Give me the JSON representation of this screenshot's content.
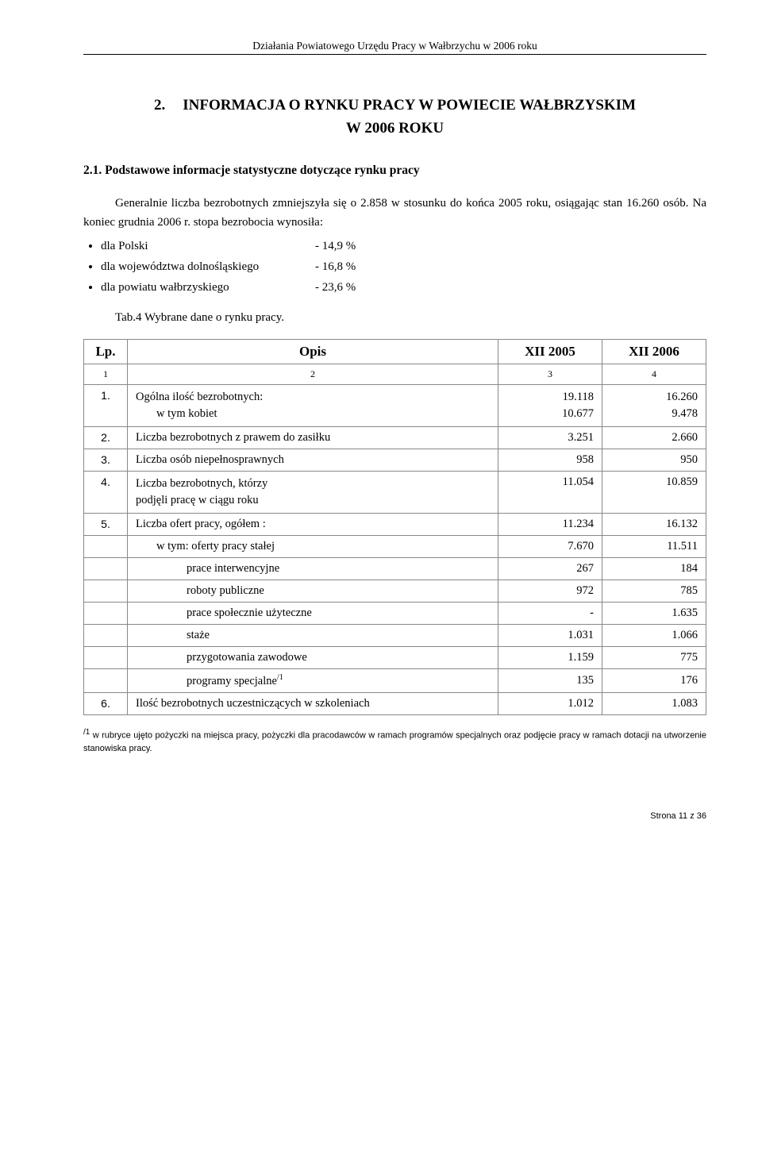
{
  "header": "Działania Powiatowego Urzędu Pracy w Wałbrzychu w 2006 roku",
  "title_num": "2.",
  "title_text_l1": "INFORMACJA  O  RYNKU PRACY W  POWIECIE WAŁBRZYSKIM",
  "title_text_l2": "W  2006  ROKU",
  "subsection": "2.1.  Podstawowe informacje statystyczne dotyczące rynku pracy",
  "para": "Generalnie liczba bezrobotnych zmniejszyła   się o  2.858 w stosunku do końca 2005 roku, osiągając stan 16.260 osób. Na koniec grudnia 2006 r. stopa bezrobocia wynosiła:",
  "stats": {
    "pl_label": "dla Polski",
    "pl_val": "- 14,9 %",
    "ds_label": "dla województwa dolnośląskiego",
    "ds_val": "- 16,8 %",
    "pw_label": "dla powiatu wałbrzyskiego",
    "pw_val": "- 23,6 %"
  },
  "tab_caption": "Tab.4 Wybrane dane o rynku pracy.",
  "table": {
    "h_lp": "Lp.",
    "h_opis": "Opis",
    "h_c1": "XII 2005",
    "h_c2": "XII 2006",
    "sub1": "1",
    "sub2": "2",
    "sub3": "3",
    "sub4": "4",
    "r1_lp": "1.",
    "r1_a": "Ogólna ilość bezrobotnych:",
    "r1_b": "w tym kobiet",
    "r1_v1a": "19.118",
    "r1_v1b": "10.677",
    "r1_v2a": "16.260",
    "r1_v2b": "9.478",
    "r2_lp": "2.",
    "r2_a": "Liczba bezrobotnych z prawem do zasiłku",
    "r2_v1": "3.251",
    "r2_v2": "2.660",
    "r3_lp": "3.",
    "r3_a": "Liczba osób niepełnosprawnych",
    "r3_v1": "958",
    "r3_v2": "950",
    "r4_lp": "4.",
    "r4_a": "Liczba  bezrobotnych, którzy",
    "r4_b": "podjęli pracę w ciągu roku",
    "r4_v1": "11.054",
    "r4_v2": "10.859",
    "r5_lp": "5.",
    "r5_a": "Liczba ofert pracy, ogółem :",
    "r5_v1": "11.234",
    "r5_v2": "16.132",
    "r5b": "w tym:  oferty pracy stałej",
    "r5b_v1": "7.670",
    "r5b_v2": "11.511",
    "r5c": "prace interwencyjne",
    "r5c_v1": "267",
    "r5c_v2": "184",
    "r5d": "roboty publiczne",
    "r5d_v1": "972",
    "r5d_v2": "785",
    "r5e": "prace społecznie użyteczne",
    "r5e_v1": "-",
    "r5e_v2": "1.635",
    "r5f": "staże",
    "r5f_v1": "1.031",
    "r5f_v2": "1.066",
    "r5g": "przygotowania zawodowe",
    "r5g_v1": "1.159",
    "r5g_v2": "775",
    "r5h_pre": "programy specjalne",
    "r5h_sup": "/1",
    "r5h_v1": "135",
    "r5h_v2": "176",
    "r6_lp": "6.",
    "r6_a": "Ilość bezrobotnych uczestniczących  w szkoleniach",
    "r6_v1": "1.012",
    "r6_v2": "1.083"
  },
  "footnote_sup": "/1",
  "footnote": "  w rubryce ujęto pożyczki na miejsca pracy, pożyczki dla pracodawców w ramach programów specjalnych oraz podjęcie pracy  w ramach dotacji na utworzenie stanowiska pracy.",
  "footer": "Strona 11 z 36"
}
